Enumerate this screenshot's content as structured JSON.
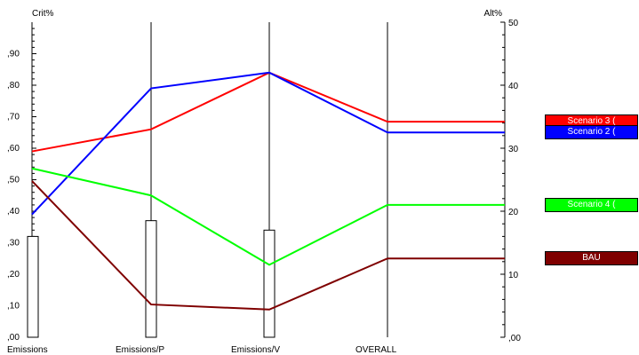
{
  "chart_data": {
    "type": "line",
    "ylabel_left": "Crit%",
    "ylabel_right": "Alt%",
    "categories": [
      "Emissions",
      "Emissions/P",
      "Emissions/V",
      "OVERALL"
    ],
    "left_ticks": [
      ",00",
      ",10",
      ",20",
      ",30",
      ",40",
      ",50",
      ",60",
      ",70",
      ",80",
      ",90"
    ],
    "right_ticks": [
      ",00",
      "10",
      "20",
      "30",
      "40",
      "50"
    ],
    "ylim_left": [
      0,
      1.0
    ],
    "ylim_right": [
      0,
      50
    ],
    "criteria_weights": [
      0.32,
      0.37,
      0.34
    ],
    "series": [
      {
        "name": "Scenario 3 (",
        "color": "#ff0000",
        "values": [
          29.5,
          33,
          42,
          34.2
        ]
      },
      {
        "name": "Scenario 2 (",
        "color": "#0000ff",
        "values": [
          19.5,
          39.5,
          42,
          32.5
        ]
      },
      {
        "name": "Scenario 4 (",
        "color": "#00ff00",
        "values": [
          26.8,
          22.5,
          11.5,
          21
        ]
      },
      {
        "name": "BAU",
        "color": "#7f0000",
        "values": [
          24.8,
          5.2,
          4.4,
          12.5
        ]
      }
    ],
    "legend_position": "right"
  }
}
